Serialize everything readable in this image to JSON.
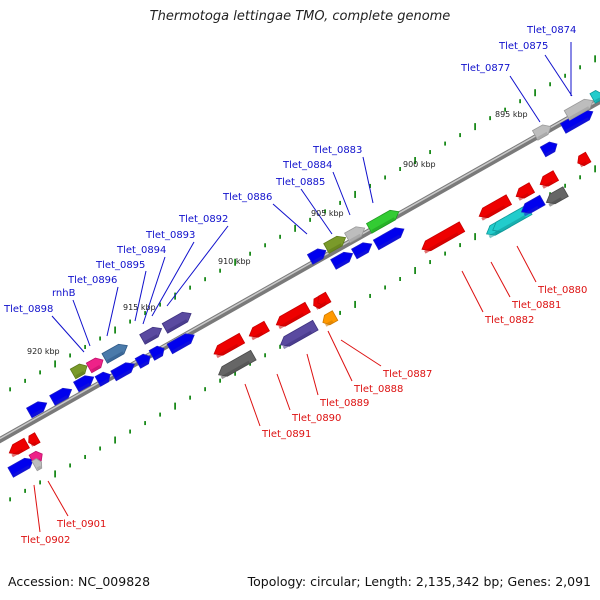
{
  "title": "Thermotoga lettingae TMO, complete genome",
  "footer": {
    "accession": "Accession: NC_009828",
    "topology": "Topology: circular; Length: 2,135,342 bp; Genes: 2,091"
  },
  "colors": {
    "forward_label": "#1010cc",
    "reverse_label": "#dd1111",
    "backbone": "#7a7a7a",
    "tick": "#1a8a1a"
  },
  "kbp_markers": [
    "895 kbp",
    "900 kbp",
    "905 kbp",
    "910 kbp",
    "915 kbp",
    "920 kbp"
  ],
  "forward_labels": [
    "Tlet_0874",
    "Tlet_0875",
    "Tlet_0877",
    "Tlet_0883",
    "Tlet_0884",
    "Tlet_0885",
    "Tlet_0886",
    "Tlet_0892",
    "Tlet_0893",
    "Tlet_0894",
    "Tlet_0895",
    "Tlet_0896",
    "rnhB",
    "Tlet_0898"
  ],
  "reverse_labels": [
    "Tlet_0880",
    "Tlet_0881",
    "Tlet_0882",
    "Tlet_0887",
    "Tlet_0888",
    "Tlet_0889",
    "Tlet_0890",
    "Tlet_0891",
    "Tlet_0901",
    "Tlet_0902"
  ],
  "gene_colors": [
    "blue",
    "red",
    "gray",
    "silver",
    "cyan",
    "green",
    "olive",
    "magenta",
    "steelblue",
    "slateblue",
    "orange"
  ]
}
